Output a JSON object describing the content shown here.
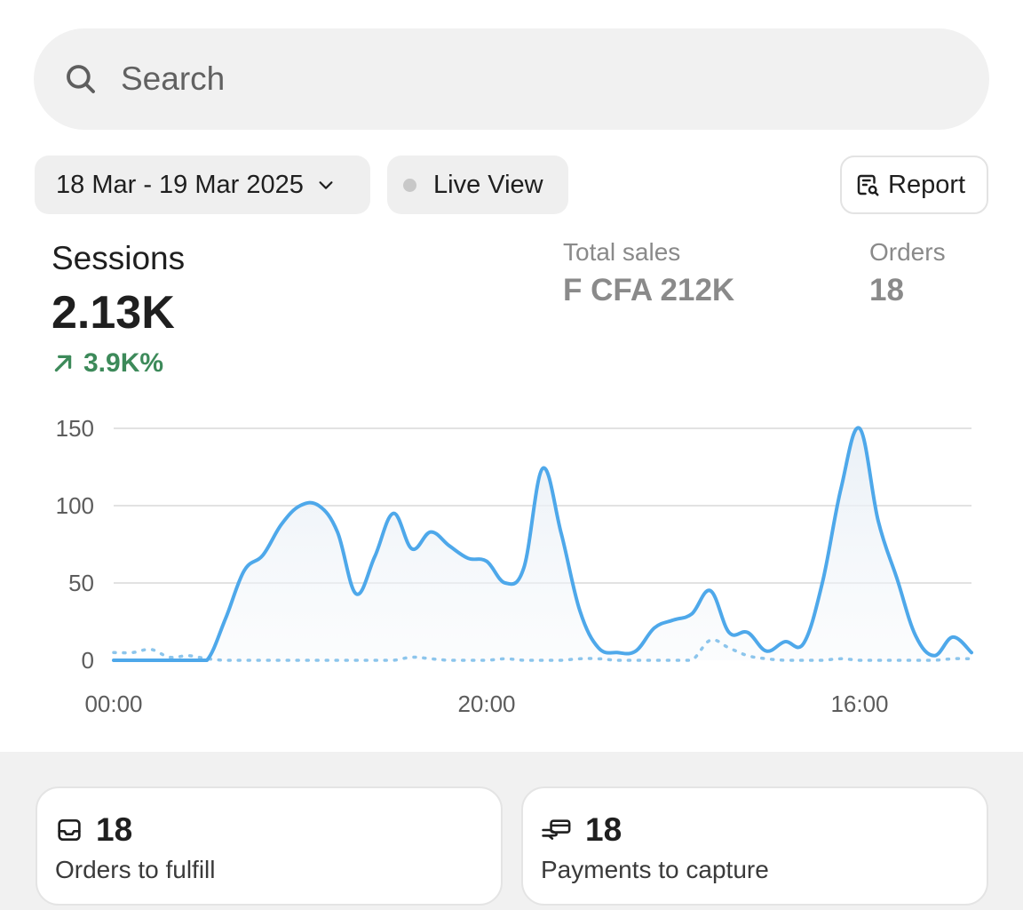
{
  "search": {
    "placeholder": "Search"
  },
  "filters": {
    "date_range": "18 Mar - 19 Mar 2025",
    "live_view": "Live View",
    "report": "Report"
  },
  "metrics": {
    "sessions": {
      "label": "Sessions",
      "value": "2.13K",
      "change": "3.9K%"
    },
    "total_sales": {
      "label": "Total sales",
      "value": "F CFA 212K"
    },
    "orders": {
      "label": "Orders",
      "value": "18"
    }
  },
  "chart_data": {
    "type": "line",
    "title": "",
    "xlabel": "",
    "ylabel": "",
    "ylim": [
      0,
      150
    ],
    "yticks": [
      "0",
      "50",
      "100",
      "150"
    ],
    "xtick_labels": [
      "00:00",
      "20:00",
      "16:00"
    ],
    "xtick_index": [
      0,
      20,
      40
    ],
    "grid": true,
    "series": [
      {
        "values": [
          0,
          0,
          0,
          0,
          0,
          0,
          27,
          58,
          68,
          88,
          100,
          100,
          83,
          43,
          67,
          95,
          72,
          83,
          74,
          66,
          64,
          50,
          60,
          124,
          82,
          32,
          8,
          5,
          6,
          21,
          26,
          30,
          45,
          18,
          18,
          6,
          12,
          11,
          50,
          111,
          150,
          90,
          53,
          16,
          3,
          15,
          5
        ]
      },
      {
        "style": "dotted",
        "values": [
          5,
          5,
          7,
          2,
          3,
          1,
          0,
          0,
          0,
          0,
          0,
          0,
          0,
          0,
          0,
          0,
          2,
          1,
          0,
          0,
          0,
          1,
          0,
          0,
          0,
          1,
          1,
          0,
          0,
          0,
          0,
          0,
          13,
          8,
          3,
          1,
          0,
          0,
          0,
          1,
          0,
          0,
          0,
          0,
          0,
          1,
          1
        ]
      }
    ]
  },
  "tasks": [
    {
      "icon": "inbox-icon",
      "count": "18",
      "label": "Orders to fulfill"
    },
    {
      "icon": "hand-card-icon",
      "count": "18",
      "label": "Payments to capture"
    }
  ],
  "colors": {
    "line": "#4ea8ea",
    "positive": "#3d8a5a",
    "muted": "#8a8a8a"
  }
}
